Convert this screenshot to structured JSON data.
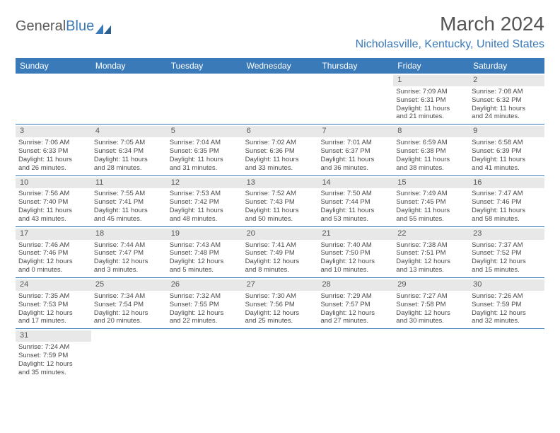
{
  "logo": {
    "text1": "General",
    "text2": "Blue"
  },
  "title": "March 2024",
  "location": "Nicholasville, Kentucky, United States",
  "dow": [
    "Sunday",
    "Monday",
    "Tuesday",
    "Wednesday",
    "Thursday",
    "Friday",
    "Saturday"
  ],
  "colors": {
    "accent": "#3b7ab8",
    "daybg": "#e8e8e8",
    "text": "#4a4a4a"
  },
  "weeks": [
    [
      null,
      null,
      null,
      null,
      null,
      {
        "n": "1",
        "sr": "Sunrise: 7:09 AM",
        "ss": "Sunset: 6:31 PM",
        "d1": "Daylight: 11 hours",
        "d2": "and 21 minutes."
      },
      {
        "n": "2",
        "sr": "Sunrise: 7:08 AM",
        "ss": "Sunset: 6:32 PM",
        "d1": "Daylight: 11 hours",
        "d2": "and 24 minutes."
      }
    ],
    [
      {
        "n": "3",
        "sr": "Sunrise: 7:06 AM",
        "ss": "Sunset: 6:33 PM",
        "d1": "Daylight: 11 hours",
        "d2": "and 26 minutes."
      },
      {
        "n": "4",
        "sr": "Sunrise: 7:05 AM",
        "ss": "Sunset: 6:34 PM",
        "d1": "Daylight: 11 hours",
        "d2": "and 28 minutes."
      },
      {
        "n": "5",
        "sr": "Sunrise: 7:04 AM",
        "ss": "Sunset: 6:35 PM",
        "d1": "Daylight: 11 hours",
        "d2": "and 31 minutes."
      },
      {
        "n": "6",
        "sr": "Sunrise: 7:02 AM",
        "ss": "Sunset: 6:36 PM",
        "d1": "Daylight: 11 hours",
        "d2": "and 33 minutes."
      },
      {
        "n": "7",
        "sr": "Sunrise: 7:01 AM",
        "ss": "Sunset: 6:37 PM",
        "d1": "Daylight: 11 hours",
        "d2": "and 36 minutes."
      },
      {
        "n": "8",
        "sr": "Sunrise: 6:59 AM",
        "ss": "Sunset: 6:38 PM",
        "d1": "Daylight: 11 hours",
        "d2": "and 38 minutes."
      },
      {
        "n": "9",
        "sr": "Sunrise: 6:58 AM",
        "ss": "Sunset: 6:39 PM",
        "d1": "Daylight: 11 hours",
        "d2": "and 41 minutes."
      }
    ],
    [
      {
        "n": "10",
        "sr": "Sunrise: 7:56 AM",
        "ss": "Sunset: 7:40 PM",
        "d1": "Daylight: 11 hours",
        "d2": "and 43 minutes."
      },
      {
        "n": "11",
        "sr": "Sunrise: 7:55 AM",
        "ss": "Sunset: 7:41 PM",
        "d1": "Daylight: 11 hours",
        "d2": "and 45 minutes."
      },
      {
        "n": "12",
        "sr": "Sunrise: 7:53 AM",
        "ss": "Sunset: 7:42 PM",
        "d1": "Daylight: 11 hours",
        "d2": "and 48 minutes."
      },
      {
        "n": "13",
        "sr": "Sunrise: 7:52 AM",
        "ss": "Sunset: 7:43 PM",
        "d1": "Daylight: 11 hours",
        "d2": "and 50 minutes."
      },
      {
        "n": "14",
        "sr": "Sunrise: 7:50 AM",
        "ss": "Sunset: 7:44 PM",
        "d1": "Daylight: 11 hours",
        "d2": "and 53 minutes."
      },
      {
        "n": "15",
        "sr": "Sunrise: 7:49 AM",
        "ss": "Sunset: 7:45 PM",
        "d1": "Daylight: 11 hours",
        "d2": "and 55 minutes."
      },
      {
        "n": "16",
        "sr": "Sunrise: 7:47 AM",
        "ss": "Sunset: 7:46 PM",
        "d1": "Daylight: 11 hours",
        "d2": "and 58 minutes."
      }
    ],
    [
      {
        "n": "17",
        "sr": "Sunrise: 7:46 AM",
        "ss": "Sunset: 7:46 PM",
        "d1": "Daylight: 12 hours",
        "d2": "and 0 minutes."
      },
      {
        "n": "18",
        "sr": "Sunrise: 7:44 AM",
        "ss": "Sunset: 7:47 PM",
        "d1": "Daylight: 12 hours",
        "d2": "and 3 minutes."
      },
      {
        "n": "19",
        "sr": "Sunrise: 7:43 AM",
        "ss": "Sunset: 7:48 PM",
        "d1": "Daylight: 12 hours",
        "d2": "and 5 minutes."
      },
      {
        "n": "20",
        "sr": "Sunrise: 7:41 AM",
        "ss": "Sunset: 7:49 PM",
        "d1": "Daylight: 12 hours",
        "d2": "and 8 minutes."
      },
      {
        "n": "21",
        "sr": "Sunrise: 7:40 AM",
        "ss": "Sunset: 7:50 PM",
        "d1": "Daylight: 12 hours",
        "d2": "and 10 minutes."
      },
      {
        "n": "22",
        "sr": "Sunrise: 7:38 AM",
        "ss": "Sunset: 7:51 PM",
        "d1": "Daylight: 12 hours",
        "d2": "and 13 minutes."
      },
      {
        "n": "23",
        "sr": "Sunrise: 7:37 AM",
        "ss": "Sunset: 7:52 PM",
        "d1": "Daylight: 12 hours",
        "d2": "and 15 minutes."
      }
    ],
    [
      {
        "n": "24",
        "sr": "Sunrise: 7:35 AM",
        "ss": "Sunset: 7:53 PM",
        "d1": "Daylight: 12 hours",
        "d2": "and 17 minutes."
      },
      {
        "n": "25",
        "sr": "Sunrise: 7:34 AM",
        "ss": "Sunset: 7:54 PM",
        "d1": "Daylight: 12 hours",
        "d2": "and 20 minutes."
      },
      {
        "n": "26",
        "sr": "Sunrise: 7:32 AM",
        "ss": "Sunset: 7:55 PM",
        "d1": "Daylight: 12 hours",
        "d2": "and 22 minutes."
      },
      {
        "n": "27",
        "sr": "Sunrise: 7:30 AM",
        "ss": "Sunset: 7:56 PM",
        "d1": "Daylight: 12 hours",
        "d2": "and 25 minutes."
      },
      {
        "n": "28",
        "sr": "Sunrise: 7:29 AM",
        "ss": "Sunset: 7:57 PM",
        "d1": "Daylight: 12 hours",
        "d2": "and 27 minutes."
      },
      {
        "n": "29",
        "sr": "Sunrise: 7:27 AM",
        "ss": "Sunset: 7:58 PM",
        "d1": "Daylight: 12 hours",
        "d2": "and 30 minutes."
      },
      {
        "n": "30",
        "sr": "Sunrise: 7:26 AM",
        "ss": "Sunset: 7:59 PM",
        "d1": "Daylight: 12 hours",
        "d2": "and 32 minutes."
      }
    ],
    [
      {
        "n": "31",
        "sr": "Sunrise: 7:24 AM",
        "ss": "Sunset: 7:59 PM",
        "d1": "Daylight: 12 hours",
        "d2": "and 35 minutes."
      },
      null,
      null,
      null,
      null,
      null,
      null
    ]
  ]
}
